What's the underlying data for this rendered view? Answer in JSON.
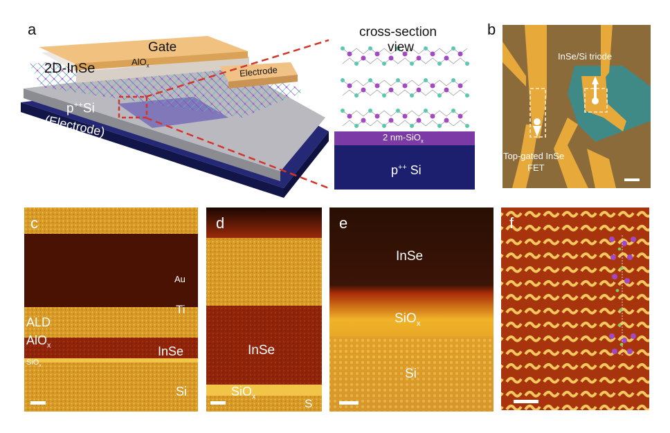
{
  "panel_a": {
    "label": "a",
    "gate": "Gate",
    "alo": "AlO",
    "alo_sub": "x",
    "inse_2d": "2D-InSe",
    "electrode": "Electrode",
    "psi": "p",
    "psi_sup": "++",
    "psi_tail": "Si",
    "psi_electrode": "(Electrode)",
    "cross_section_1": "cross-section",
    "cross_section_2": "view",
    "sio_layer": "2 nm-SiO",
    "sio_sub": "x",
    "si_bottom": "p",
    "si_bottom_sup": "++",
    "si_bottom_tail": " Si"
  },
  "panel_b": {
    "label": "b",
    "triode": "InSe/Si triode",
    "fet_1": "Top-gated InSe",
    "fet_2": "FET"
  },
  "panel_c": {
    "label": "c",
    "au": "Au",
    "ti": "Ti",
    "ald": "ALD",
    "alo": "AlO",
    "alo_sub": "x",
    "inse": "InSe",
    "sio": "SiO",
    "sio_sub": "x",
    "si": "Si"
  },
  "panel_d": {
    "label": "d",
    "inse": "InSe",
    "sio": "SiO",
    "sio_sub": "x",
    "s": "S"
  },
  "panel_e": {
    "label": "e",
    "inse": "InSe",
    "sio": "SiO",
    "sio_sub": "x",
    "si": "Si"
  },
  "panel_f": {
    "label": "f"
  },
  "colors": {
    "gate": "#f1c27f",
    "substrate": "#1c1f6e",
    "sio2": "#7b3aa6",
    "device_bg": "#8c6b3a",
    "gold": "#e8a93b",
    "tem_dark": "#4a1203",
    "tem_red": "#9b2a0a",
    "tem_gold": "#e0a52a"
  }
}
